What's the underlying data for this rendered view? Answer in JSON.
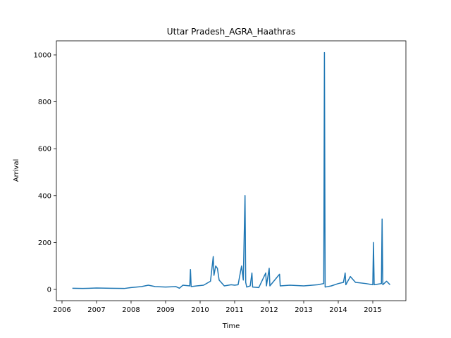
{
  "chart_data": {
    "type": "line",
    "title": "Uttar Pradesh_AGRA_Haathras",
    "xlabel": "Time",
    "ylabel": "Arrival",
    "x": [
      2006.3,
      2006.6,
      2007.0,
      2007.4,
      2007.8,
      2008.0,
      2008.3,
      2008.5,
      2008.7,
      2009.0,
      2009.3,
      2009.4,
      2009.5,
      2009.7,
      2009.72,
      2009.74,
      2009.9,
      2010.1,
      2010.3,
      2010.38,
      2010.4,
      2010.45,
      2010.5,
      2010.55,
      2010.7,
      2010.9,
      2011.0,
      2011.1,
      2011.15,
      2011.2,
      2011.25,
      2011.3,
      2011.32,
      2011.35,
      2011.45,
      2011.5,
      2011.52,
      2011.7,
      2011.9,
      2011.92,
      2012.0,
      2012.02,
      2012.3,
      2012.32,
      2012.6,
      2013.0,
      2013.4,
      2013.58,
      2013.6,
      2013.62,
      2013.8,
      2014.0,
      2014.15,
      2014.2,
      2014.22,
      2014.35,
      2014.5,
      2014.8,
      2015.0,
      2015.02,
      2015.04,
      2015.25,
      2015.27,
      2015.29,
      2015.4,
      2015.5
    ],
    "series": [
      {
        "color": "#1f77b4",
        "values": [
          5,
          4,
          6,
          5,
          4,
          8,
          12,
          18,
          12,
          10,
          12,
          5,
          18,
          15,
          85,
          12,
          15,
          18,
          35,
          140,
          60,
          100,
          90,
          40,
          15,
          20,
          18,
          20,
          60,
          100,
          40,
          400,
          30,
          10,
          15,
          70,
          10,
          8,
          70,
          15,
          90,
          15,
          65,
          15,
          18,
          15,
          20,
          25,
          1010,
          10,
          15,
          25,
          30,
          70,
          20,
          55,
          30,
          25,
          20,
          200,
          20,
          25,
          300,
          20,
          35,
          20
        ]
      }
    ],
    "xlim": [
      2005.837,
      2015.959
    ],
    "xticks": [
      2006,
      2007,
      2008,
      2009,
      2010,
      2011,
      2012,
      2013,
      2014,
      2015
    ],
    "ylim": [
      -48,
      1060
    ],
    "yticks": [
      0,
      200,
      400,
      600,
      800,
      1000
    ]
  }
}
